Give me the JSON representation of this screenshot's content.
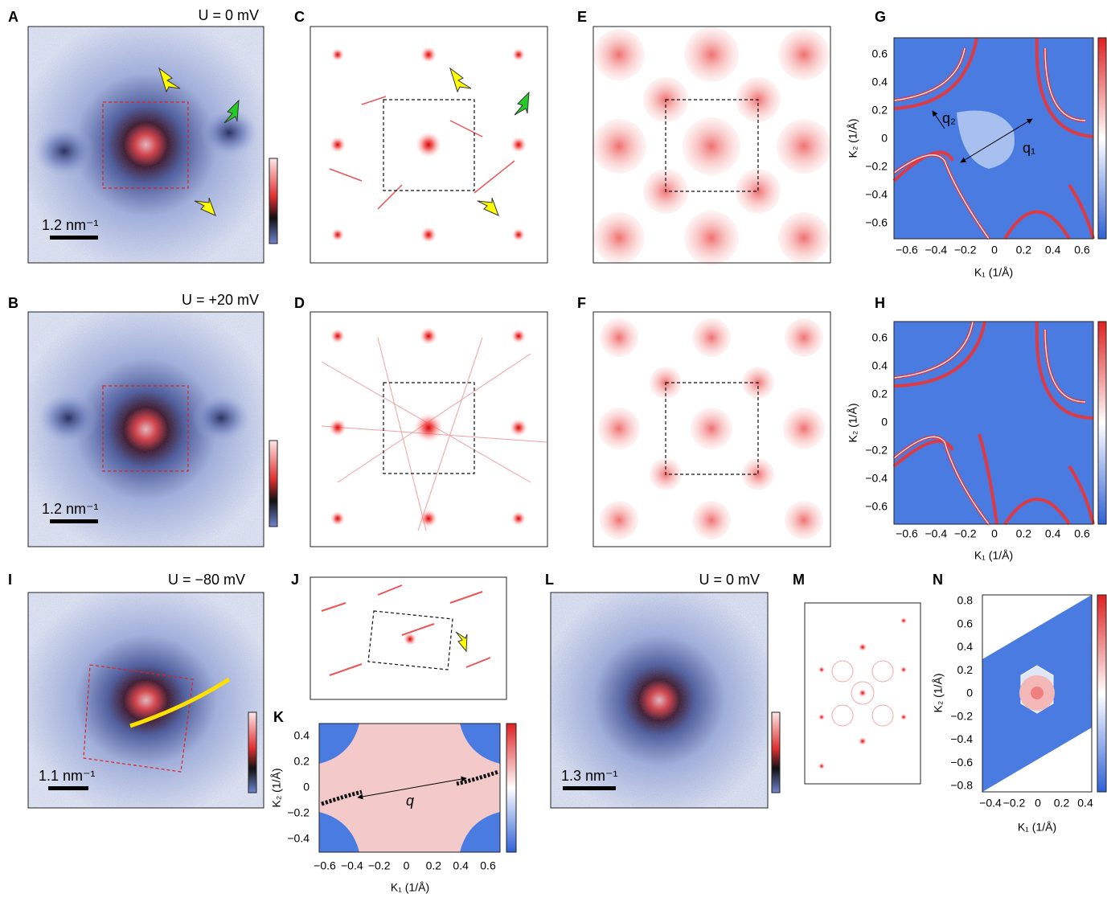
{
  "panels": {
    "A": {
      "letter": "A",
      "voltage": "U = 0 mV",
      "scale": "1.2 nm⁻¹"
    },
    "B": {
      "letter": "B",
      "voltage": "U = +20 mV",
      "scale": "1.2 nm⁻¹"
    },
    "C": {
      "letter": "C"
    },
    "D": {
      "letter": "D"
    },
    "E": {
      "letter": "E"
    },
    "F": {
      "letter": "F"
    },
    "G": {
      "letter": "G",
      "xticks": [
        "−0.6",
        "−0.4",
        "−0.2",
        "0",
        "0.2",
        "0.4",
        "0.6"
      ],
      "yticks": [
        "0.6",
        "0.4",
        "0.2",
        "0",
        "−0.2",
        "−0.4",
        "−0.6"
      ],
      "xlabel": "K₁ (1/Å)",
      "ylabel": "K₂ (1/Å)",
      "annotations": [
        "q₂",
        "q₁"
      ]
    },
    "H": {
      "letter": "H",
      "xticks": [
        "−0.6",
        "−0.4",
        "−0.2",
        "0",
        "0.2",
        "0.4",
        "0.6"
      ],
      "yticks": [
        "0.6",
        "0.4",
        "0.2",
        "0",
        "−0.2",
        "−0.4",
        "−0.6"
      ],
      "xlabel": "K₁ (1/Å)",
      "ylabel": "K₂ (1/Å)"
    },
    "I": {
      "letter": "I",
      "voltage": "U = −80 mV",
      "scale": "1.1 nm⁻¹"
    },
    "J": {
      "letter": "J"
    },
    "K": {
      "letter": "K",
      "xticks": [
        "−0.6",
        "−0.4",
        "−0.2",
        "0",
        "0.2",
        "0.4",
        "0.6"
      ],
      "yticks": [
        "0.4",
        "0.2",
        "0",
        "−0.2",
        "−0.4"
      ],
      "xlabel": "K₁ (1/Å)",
      "ylabel": "K₂ (1/Å)",
      "annotations": [
        "q"
      ]
    },
    "L": {
      "letter": "L",
      "voltage": "U = 0 mV",
      "scale": "1.3 nm⁻¹"
    },
    "M": {
      "letter": "M"
    },
    "N": {
      "letter": "N",
      "xticks": [
        "−0.4",
        "−0.2",
        "0",
        "0.2",
        "0.4"
      ],
      "yticks": [
        "0.8",
        "0.6",
        "0.4",
        "0.2",
        "0",
        "−0.2",
        "−0.4",
        "−0.6",
        "−0.8"
      ],
      "xlabel": "K₁ (1/Å)",
      "ylabel": "K₂ (1/Å)"
    }
  }
}
